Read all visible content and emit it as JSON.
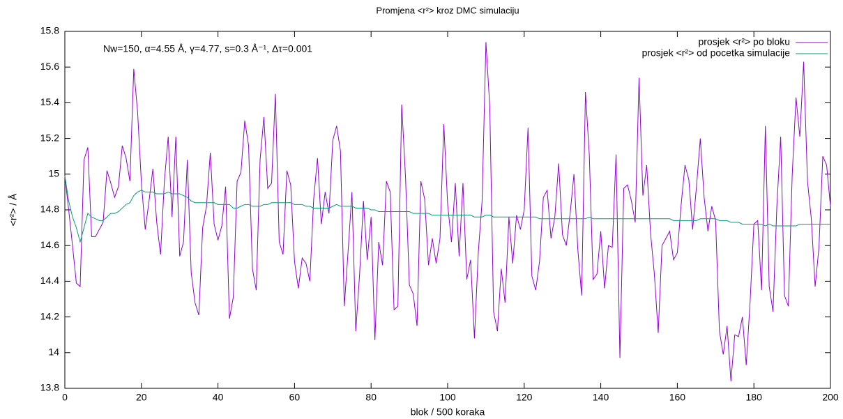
{
  "chart_data": {
    "type": "line",
    "title": "Promjena <r²> kroz DMC simulaciju",
    "annotation": "Nw=150, α=4.55 Å, γ=4.77, s=0.3 Å⁻¹, Δτ=0.001",
    "x_label": "blok / 500 koraka",
    "y_label": "<r²> / Å",
    "legend": "top-right",
    "grid": false,
    "xlim": [
      0,
      200
    ],
    "ylim": [
      13.8,
      15.8
    ],
    "xticks": [
      0,
      20,
      40,
      60,
      80,
      100,
      120,
      140,
      160,
      180,
      200
    ],
    "yticks": [
      13.8,
      14,
      14.2,
      14.4,
      14.6,
      14.8,
      15,
      15.2,
      15.4,
      15.6,
      15.8
    ],
    "x": [
      0,
      1,
      2,
      3,
      4,
      5,
      6,
      7,
      8,
      9,
      10,
      11,
      12,
      13,
      14,
      15,
      16,
      17,
      18,
      19,
      20,
      21,
      22,
      23,
      24,
      25,
      26,
      27,
      28,
      29,
      30,
      31,
      32,
      33,
      34,
      35,
      36,
      37,
      38,
      39,
      40,
      41,
      42,
      43,
      44,
      45,
      46,
      47,
      48,
      49,
      50,
      51,
      52,
      53,
      54,
      55,
      56,
      57,
      58,
      59,
      60,
      61,
      62,
      63,
      64,
      65,
      66,
      67,
      68,
      69,
      70,
      71,
      72,
      73,
      74,
      75,
      76,
      77,
      78,
      79,
      80,
      81,
      82,
      83,
      84,
      85,
      86,
      87,
      88,
      89,
      90,
      91,
      92,
      93,
      94,
      95,
      96,
      97,
      98,
      99,
      100,
      101,
      102,
      103,
      104,
      105,
      106,
      107,
      108,
      109,
      110,
      111,
      112,
      113,
      114,
      115,
      116,
      117,
      118,
      119,
      120,
      121,
      122,
      123,
      124,
      125,
      126,
      127,
      128,
      129,
      130,
      131,
      132,
      133,
      134,
      135,
      136,
      137,
      138,
      139,
      140,
      141,
      142,
      143,
      144,
      145,
      146,
      147,
      148,
      149,
      150,
      151,
      152,
      153,
      154,
      155,
      156,
      157,
      158,
      159,
      160,
      161,
      162,
      163,
      164,
      165,
      166,
      167,
      168,
      169,
      170,
      171,
      172,
      173,
      174,
      175,
      176,
      177,
      178,
      179,
      180,
      181,
      182,
      183,
      184,
      185,
      186,
      187,
      188,
      189,
      190,
      191,
      192,
      193,
      194,
      195,
      196,
      197,
      198,
      199,
      200
    ],
    "series": [
      {
        "name": "prosjek <r²> po bloku",
        "color": "#9400d3",
        "values": [
          14.99,
          14.8,
          14.6,
          14.39,
          14.37,
          15.08,
          15.15,
          14.65,
          14.65,
          14.69,
          14.73,
          15.02,
          14.95,
          14.87,
          14.93,
          15.16,
          15.09,
          14.96,
          15.59,
          15.35,
          14.95,
          14.69,
          14.85,
          15.03,
          14.73,
          14.55,
          14.96,
          15.21,
          14.76,
          15.21,
          14.54,
          14.62,
          15.08,
          14.45,
          14.28,
          14.21,
          14.7,
          14.82,
          15.12,
          14.72,
          14.63,
          14.71,
          14.93,
          14.19,
          14.31,
          14.96,
          15.01,
          15.3,
          15.16,
          14.47,
          14.35,
          15.08,
          15.32,
          14.92,
          14.95,
          15.45,
          14.62,
          14.55,
          15.02,
          14.94,
          14.51,
          14.36,
          14.53,
          14.5,
          14.4,
          14.86,
          15.09,
          14.72,
          14.9,
          14.78,
          15.19,
          15.27,
          15.13,
          14.26,
          14.57,
          14.9,
          14.12,
          14.44,
          14.85,
          14.52,
          14.76,
          14.07,
          14.62,
          14.49,
          14.96,
          14.9,
          14.24,
          14.26,
          15.39,
          14.98,
          14.38,
          14.33,
          14.15,
          14.96,
          14.86,
          14.49,
          14.64,
          14.5,
          14.64,
          15.28,
          14.83,
          14.62,
          14.95,
          14.54,
          14.95,
          14.41,
          14.52,
          14.08,
          14.56,
          14.85,
          15.74,
          15.38,
          14.23,
          14.12,
          14.47,
          14.28,
          14.76,
          14.5,
          14.77,
          14.69,
          14.8,
          15.26,
          14.43,
          14.35,
          14.51,
          14.87,
          14.91,
          14.64,
          14.76,
          15.06,
          14.66,
          14.6,
          14.78,
          15.0,
          14.58,
          14.32,
          15.46,
          15.11,
          14.41,
          14.44,
          14.68,
          14.36,
          14.6,
          14.59,
          15.11,
          13.97,
          14.92,
          14.94,
          14.85,
          14.73,
          15.54,
          14.88,
          15.05,
          14.67,
          14.44,
          14.11,
          14.6,
          14.64,
          14.68,
          14.52,
          14.56,
          14.83,
          15.05,
          14.97,
          14.69,
          14.93,
          15.2,
          14.87,
          14.68,
          14.82,
          14.74,
          14.12,
          13.99,
          14.15,
          13.84,
          14.1,
          14.09,
          14.2,
          13.93,
          14.28,
          14.72,
          14.74,
          14.35,
          15.27,
          14.37,
          14.23,
          14.82,
          15.21,
          14.32,
          14.26,
          14.99,
          15.43,
          15.21,
          15.63,
          14.96,
          14.75,
          14.37,
          14.59,
          15.1,
          15.05,
          14.82
        ]
      },
      {
        "name": "prosjek <r²> od pocetka simulacije",
        "color": "#009e73",
        "values": [
          14.99,
          14.85,
          14.76,
          14.7,
          14.62,
          14.7,
          14.78,
          14.76,
          14.75,
          14.74,
          14.74,
          14.76,
          14.78,
          14.78,
          14.79,
          14.81,
          14.83,
          14.84,
          14.88,
          14.9,
          14.91,
          14.9,
          14.9,
          14.9,
          14.89,
          14.89,
          14.89,
          14.9,
          14.89,
          14.89,
          14.89,
          14.88,
          14.87,
          14.85,
          14.84,
          14.84,
          14.84,
          14.84,
          14.84,
          14.84,
          14.83,
          14.83,
          14.83,
          14.83,
          14.81,
          14.81,
          14.82,
          14.83,
          14.83,
          14.82,
          14.82,
          14.82,
          14.83,
          14.83,
          14.84,
          14.84,
          14.84,
          14.84,
          14.84,
          14.84,
          14.83,
          14.83,
          14.83,
          14.82,
          14.82,
          14.81,
          14.81,
          14.81,
          14.81,
          14.81,
          14.82,
          14.83,
          14.82,
          14.82,
          14.82,
          14.82,
          14.81,
          14.81,
          14.81,
          14.81,
          14.8,
          14.8,
          14.79,
          14.79,
          14.79,
          14.79,
          14.79,
          14.79,
          14.79,
          14.79,
          14.79,
          14.78,
          14.78,
          14.78,
          14.78,
          14.78,
          14.77,
          14.77,
          14.77,
          14.77,
          14.77,
          14.77,
          14.77,
          14.77,
          14.77,
          14.77,
          14.77,
          14.76,
          14.76,
          14.76,
          14.77,
          14.77,
          14.76,
          14.76,
          14.76,
          14.76,
          14.76,
          14.76,
          14.76,
          14.76,
          14.76,
          14.76,
          14.76,
          14.76,
          14.75,
          14.75,
          14.75,
          14.75,
          14.75,
          14.75,
          14.75,
          14.75,
          14.75,
          14.75,
          14.75,
          14.75,
          14.75,
          14.76,
          14.75,
          14.75,
          14.75,
          14.75,
          14.75,
          14.75,
          14.75,
          14.75,
          14.75,
          14.75,
          14.75,
          14.75,
          14.75,
          14.75,
          14.75,
          14.75,
          14.75,
          14.75,
          14.75,
          14.75,
          14.75,
          14.74,
          14.74,
          14.74,
          14.74,
          14.74,
          14.74,
          14.74,
          14.75,
          14.75,
          14.75,
          14.75,
          14.75,
          14.74,
          14.74,
          14.74,
          14.73,
          14.73,
          14.73,
          14.72,
          14.72,
          14.72,
          14.72,
          14.72,
          14.72,
          14.71,
          14.72,
          14.71,
          14.71,
          14.71,
          14.71,
          14.71,
          14.71,
          14.71,
          14.72,
          14.72,
          14.72,
          14.72,
          14.72,
          14.72,
          14.72,
          14.72,
          14.72
        ]
      }
    ]
  }
}
